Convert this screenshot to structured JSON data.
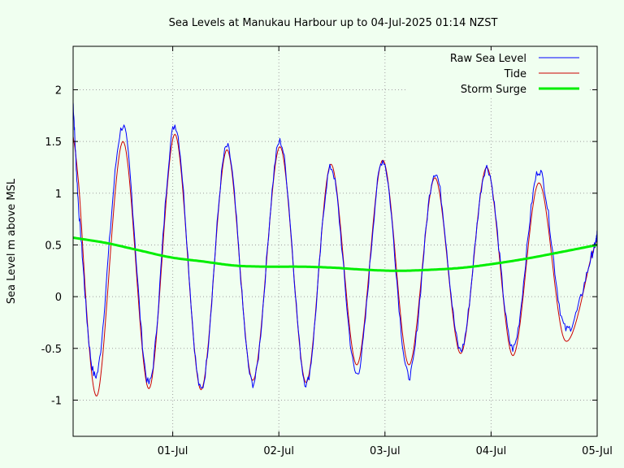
{
  "chart_data": {
    "type": "line",
    "title": "Sea Levels at Manukau Harbour up to 04-Jul-2025 01:14 NZST",
    "xlabel": "",
    "ylabel": "Sea Level m above MSL",
    "x_unit": "days (30-Jun-2025 00:00 NZST = 0)",
    "xlim": [
      0,
      4.84
    ],
    "ylim": [
      -1.35,
      2.42
    ],
    "x_ticks": [
      {
        "value": 0.92,
        "label": "01-Jul"
      },
      {
        "value": 1.9,
        "label": "02-Jul"
      },
      {
        "value": 2.88,
        "label": "03-Jul"
      },
      {
        "value": 3.86,
        "label": "04-Jul"
      },
      {
        "value": 4.84,
        "label": "05-Jul"
      }
    ],
    "y_ticks": [
      {
        "value": 2,
        "label": "2"
      },
      {
        "value": 1.5,
        "label": "1.5"
      },
      {
        "value": 1,
        "label": "1"
      },
      {
        "value": 0.5,
        "label": "0.5"
      },
      {
        "value": 0,
        "label": "0"
      },
      {
        "value": -0.5,
        "label": "-0.5"
      },
      {
        "value": -1,
        "label": "-1"
      }
    ],
    "grid": true,
    "legend_position": "top-right",
    "series": [
      {
        "name": "Raw Sea Level",
        "color": "#0000ff",
        "noisy": true,
        "x": [
          0.0,
          0.07,
          0.22,
          0.46,
          0.7,
          0.94,
          1.18,
          1.42,
          1.66,
          1.91,
          2.15,
          2.38,
          2.62,
          2.86,
          3.1,
          3.34,
          3.58,
          3.82,
          4.06,
          4.3,
          4.54,
          4.79,
          4.84
        ],
        "y": [
          1.88,
          0.6,
          -0.75,
          1.65,
          -0.84,
          1.66,
          -0.9,
          1.45,
          -0.84,
          1.5,
          -0.84,
          1.25,
          -0.75,
          1.32,
          -0.77,
          1.2,
          -0.52,
          1.25,
          -0.5,
          1.22,
          -0.3,
          0.4,
          0.6
        ]
      },
      {
        "name": "Tide",
        "color": "#cc0000",
        "noisy": false,
        "x": [
          0.0,
          0.05,
          0.22,
          0.46,
          0.7,
          0.94,
          1.18,
          1.42,
          1.66,
          1.91,
          2.15,
          2.38,
          2.62,
          2.86,
          3.1,
          3.34,
          3.58,
          3.82,
          4.06,
          4.3,
          4.54,
          4.79,
          4.84
        ],
        "y": [
          1.55,
          1.1,
          -0.96,
          1.5,
          -0.89,
          1.57,
          -0.9,
          1.42,
          -0.81,
          1.45,
          -0.83,
          1.28,
          -0.66,
          1.32,
          -0.66,
          1.15,
          -0.55,
          1.25,
          -0.57,
          1.1,
          -0.42,
          0.4,
          0.55
        ]
      },
      {
        "name": "Storm Surge",
        "color": "#00ee00",
        "noisy": false,
        "x": [
          0.0,
          0.3,
          0.6,
          0.9,
          1.2,
          1.5,
          1.8,
          2.1,
          2.4,
          2.7,
          3.0,
          3.3,
          3.6,
          3.9,
          4.2,
          4.5,
          4.84
        ],
        "y": [
          0.57,
          0.52,
          0.45,
          0.38,
          0.34,
          0.3,
          0.29,
          0.29,
          0.28,
          0.26,
          0.25,
          0.26,
          0.28,
          0.32,
          0.37,
          0.43,
          0.5
        ]
      }
    ]
  }
}
